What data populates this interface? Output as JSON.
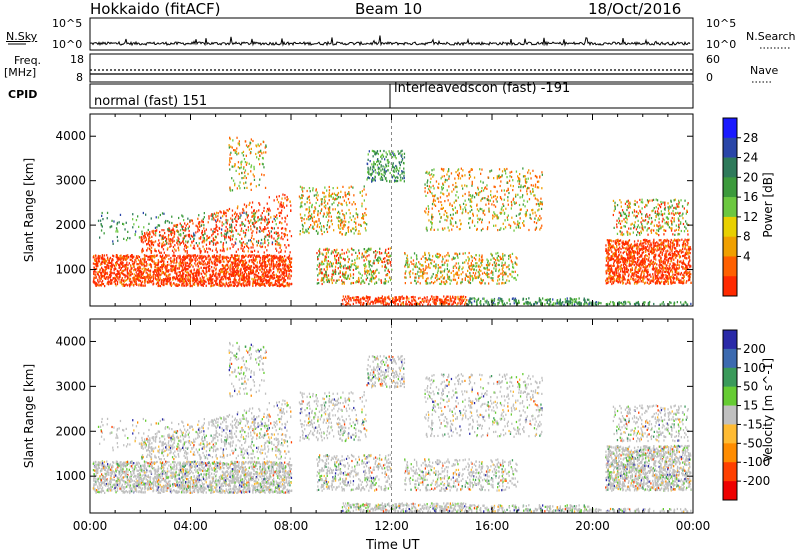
{
  "header": {
    "site": "Hokkaido (fitACF)",
    "beam": "Beam 10",
    "date": "18/Oct/2016"
  },
  "strips": {
    "nsky_label": "N.Sky",
    "nsky_ticks": [
      "10^5",
      "10^0"
    ],
    "nsearch_label": "N.Search",
    "nsearch_ticks": [
      "10^5",
      "10^0"
    ],
    "freq_label": [
      "Freq.",
      "[MHz]"
    ],
    "freq_ticks": [
      "18",
      "8"
    ],
    "nave_label": "Nave",
    "nave_ticks": [
      "60",
      "0"
    ],
    "cpid_label": "CPID",
    "cpid_modes": [
      "normal (fast) 151",
      "interleavedscon (fast) -191"
    ]
  },
  "chart_data": [
    {
      "type": "heatmap",
      "title": "",
      "ylabel": "Slant Range [km]",
      "xlabel": "",
      "x_ticks": [
        "00:00",
        "04:00",
        "08:00",
        "12:00",
        "16:00",
        "20:00",
        "00:00"
      ],
      "y_ticks": [
        "1000",
        "2000",
        "3000",
        "4000"
      ],
      "ylim": [
        180,
        4500
      ],
      "xlim_hours": [
        0,
        24
      ],
      "colorbar": {
        "label": "Power [dB]",
        "ticks": [
          "4",
          "8",
          "12",
          "16",
          "20",
          "24",
          "28"
        ],
        "colors": [
          "#1a1aff",
          "#2a46a8",
          "#2e7a5a",
          "#3c9a3c",
          "#6cc840",
          "#e8d000",
          "#f0a000",
          "#ff6000",
          "#ff2a00"
        ]
      }
    },
    {
      "type": "heatmap",
      "title": "",
      "ylabel": "Slant Range [km]",
      "xlabel": "Time UT",
      "x_ticks": [
        "00:00",
        "04:00",
        "08:00",
        "12:00",
        "16:00",
        "20:00",
        "00:00"
      ],
      "y_ticks": [
        "1000",
        "2000",
        "3000",
        "4000"
      ],
      "ylim": [
        180,
        4500
      ],
      "xlim_hours": [
        0,
        24
      ],
      "colorbar": {
        "label": "Velocity [m s^-1]",
        "ticks": [
          "200",
          "100",
          "50",
          "15",
          "-15",
          "-50",
          "-100",
          "-200"
        ],
        "colors": [
          "#2a2aa8",
          "#3c6ab0",
          "#3a9a5a",
          "#66cc33",
          "#c0c0c0",
          "#ffbb33",
          "#ff8c00",
          "#ff4000",
          "#ee0000"
        ]
      }
    }
  ]
}
